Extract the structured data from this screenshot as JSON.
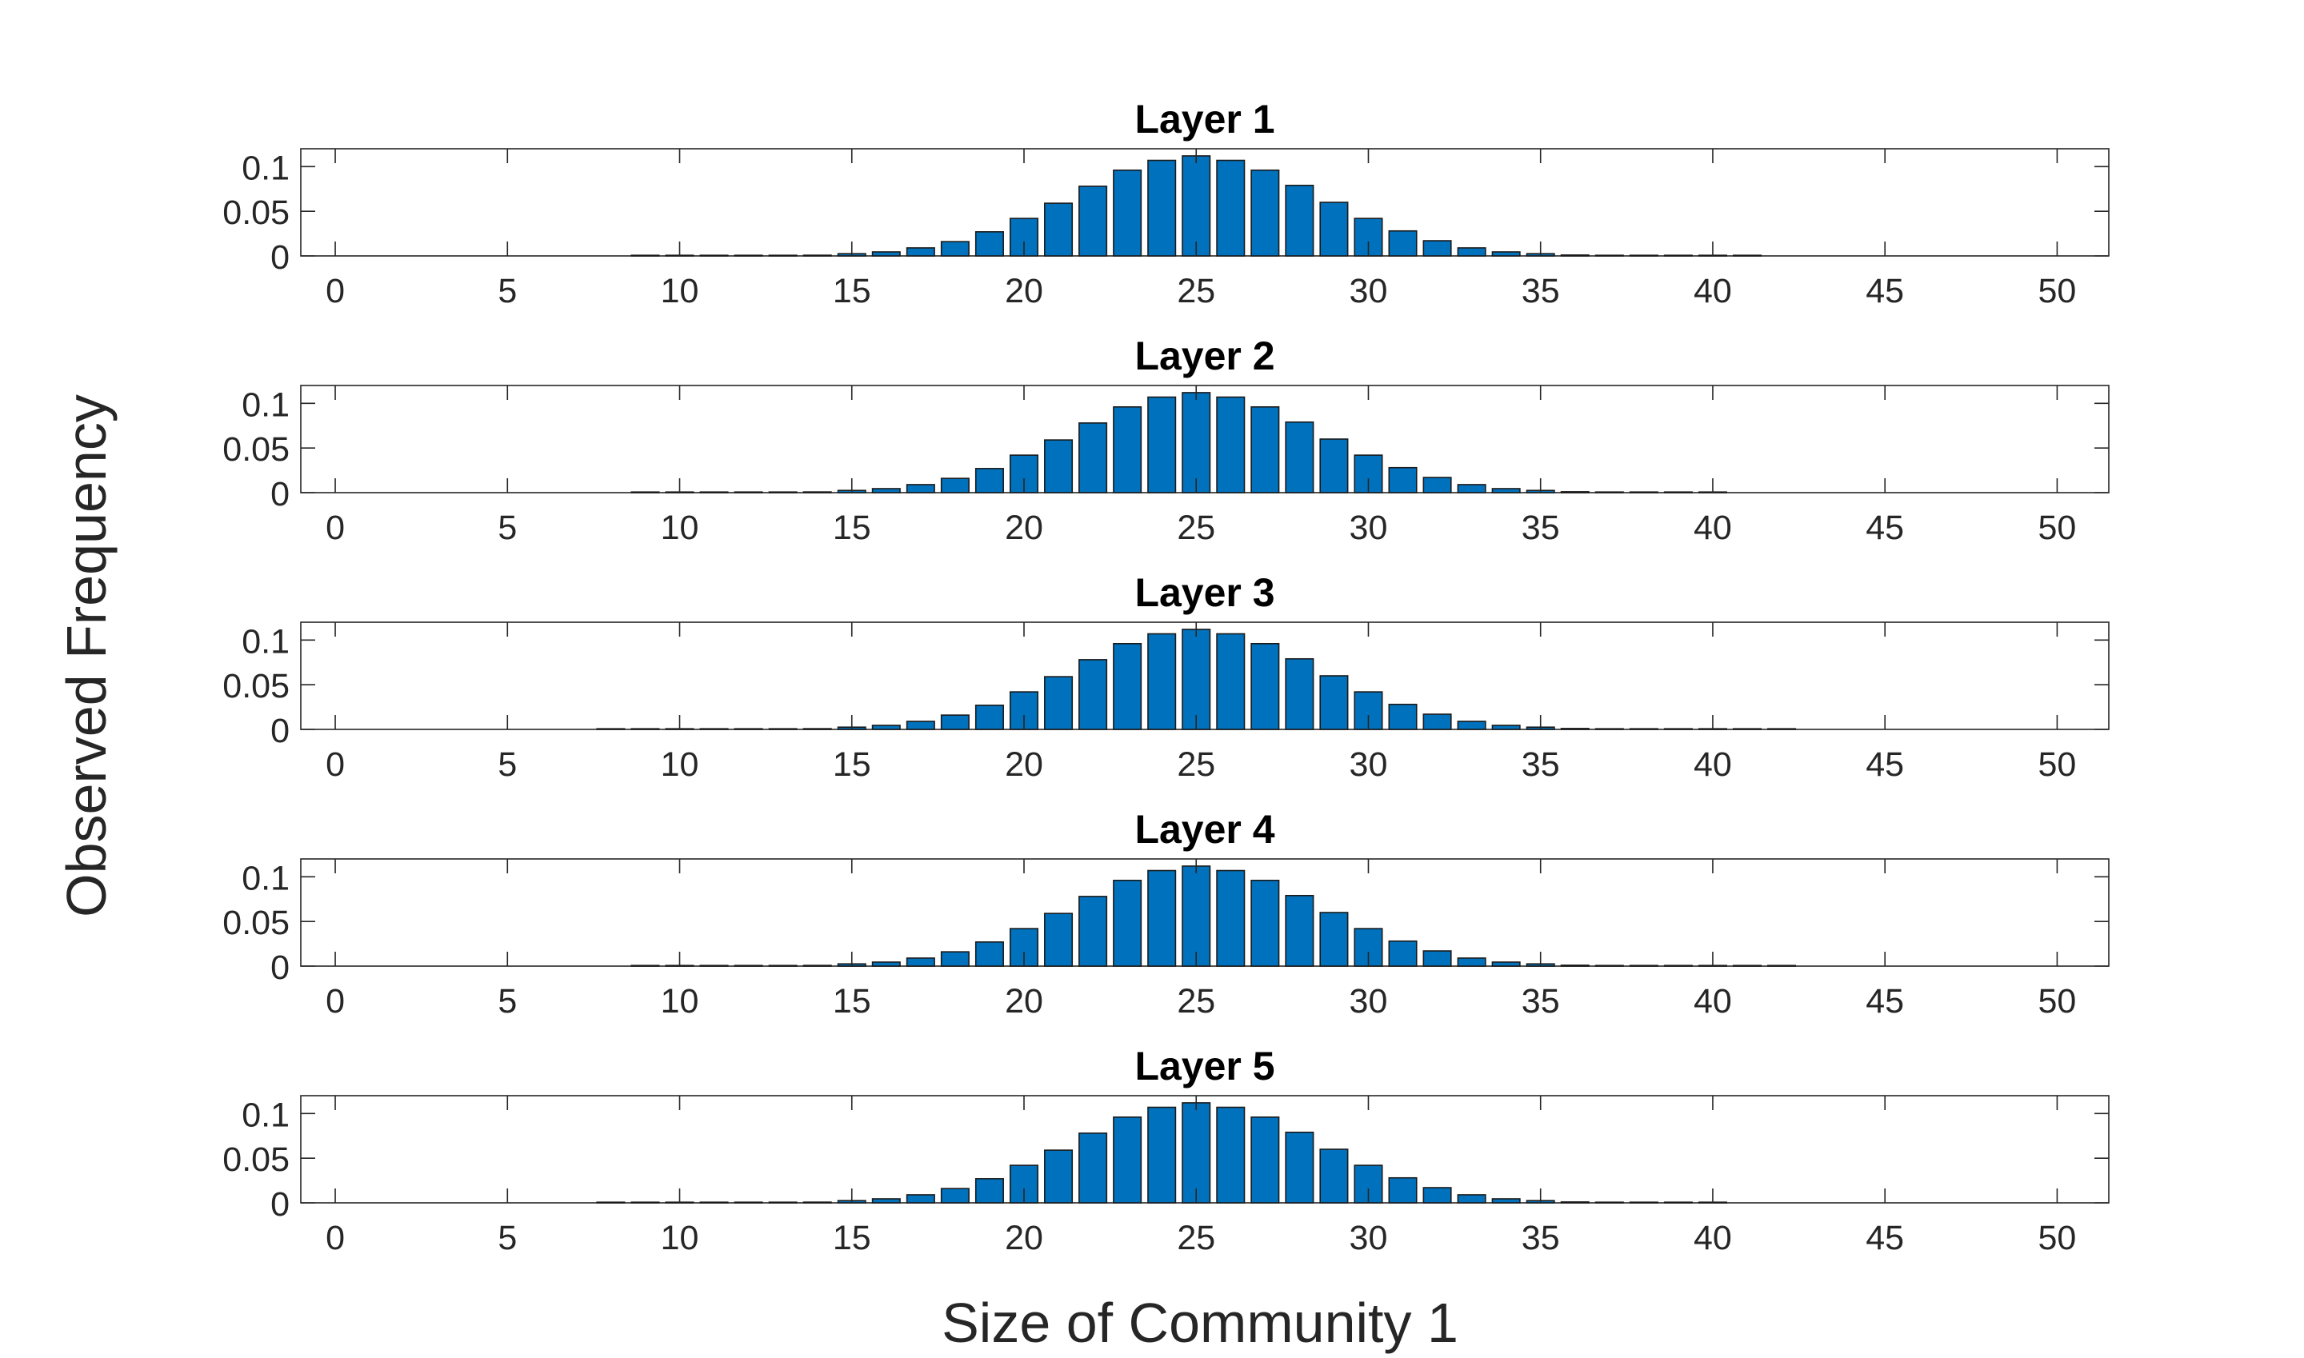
{
  "chart_data": {
    "type": "bar",
    "xlabel": "Size of Community 1",
    "ylabel": "Observed Frequency",
    "xlim": [
      -1,
      51.5
    ],
    "ylim": [
      0,
      0.12
    ],
    "xticks": [
      0,
      5,
      10,
      15,
      20,
      25,
      30,
      35,
      40,
      45,
      50
    ],
    "xtick_labels": [
      "0",
      "5",
      "10",
      "15",
      "20",
      "25",
      "30",
      "35",
      "40",
      "45",
      "50"
    ],
    "yticks": [
      0,
      0.05,
      0.1
    ],
    "ytick_labels": [
      "0",
      "0.05",
      "0.1"
    ],
    "bar_color": "#0072BD",
    "bar_edge_color": "#1a1a1a",
    "panels": [
      {
        "title": "Layer 1",
        "x": [
          9,
          10,
          11,
          12,
          13,
          14,
          15,
          16,
          17,
          18,
          19,
          20,
          21,
          22,
          23,
          24,
          25,
          26,
          27,
          28,
          29,
          30,
          31,
          32,
          33,
          34,
          35,
          36,
          37,
          38,
          39,
          40,
          41
        ],
        "values": [
          0.0001,
          0.0002,
          0.0003,
          0.0004,
          0.0005,
          0.0008,
          0.0025,
          0.0045,
          0.009,
          0.016,
          0.027,
          0.042,
          0.059,
          0.078,
          0.096,
          0.107,
          0.112,
          0.107,
          0.096,
          0.079,
          0.06,
          0.042,
          0.028,
          0.017,
          0.009,
          0.0045,
          0.0025,
          0.001,
          0.0007,
          0.0004,
          0.0003,
          0.0002,
          0.0001
        ]
      },
      {
        "title": "Layer 2",
        "x": [
          9,
          10,
          11,
          12,
          13,
          14,
          15,
          16,
          17,
          18,
          19,
          20,
          21,
          22,
          23,
          24,
          25,
          26,
          27,
          28,
          29,
          30,
          31,
          32,
          33,
          34,
          35,
          36,
          37,
          38,
          39,
          40
        ],
        "values": [
          0.0001,
          0.0002,
          0.0003,
          0.0004,
          0.0005,
          0.0008,
          0.0025,
          0.0045,
          0.009,
          0.016,
          0.027,
          0.042,
          0.059,
          0.078,
          0.096,
          0.107,
          0.112,
          0.107,
          0.096,
          0.079,
          0.06,
          0.042,
          0.028,
          0.017,
          0.009,
          0.0045,
          0.0025,
          0.001,
          0.0007,
          0.0004,
          0.0003,
          0.0002
        ]
      },
      {
        "title": "Layer 3",
        "x": [
          8,
          9,
          10,
          11,
          12,
          13,
          14,
          15,
          16,
          17,
          18,
          19,
          20,
          21,
          22,
          23,
          24,
          25,
          26,
          27,
          28,
          29,
          30,
          31,
          32,
          33,
          34,
          35,
          36,
          37,
          38,
          39,
          40,
          41,
          42
        ],
        "values": [
          0.0001,
          0.0001,
          0.0002,
          0.0003,
          0.0004,
          0.0005,
          0.0008,
          0.0025,
          0.0045,
          0.009,
          0.016,
          0.027,
          0.042,
          0.059,
          0.078,
          0.096,
          0.107,
          0.112,
          0.107,
          0.096,
          0.079,
          0.06,
          0.042,
          0.028,
          0.017,
          0.009,
          0.0045,
          0.0025,
          0.001,
          0.0007,
          0.0004,
          0.0003,
          0.0002,
          0.0001,
          0.0001
        ]
      },
      {
        "title": "Layer 4",
        "x": [
          9,
          10,
          11,
          12,
          13,
          14,
          15,
          16,
          17,
          18,
          19,
          20,
          21,
          22,
          23,
          24,
          25,
          26,
          27,
          28,
          29,
          30,
          31,
          32,
          33,
          34,
          35,
          36,
          37,
          38,
          39,
          40,
          41,
          42
        ],
        "values": [
          0.0001,
          0.0002,
          0.0003,
          0.0004,
          0.0005,
          0.0008,
          0.0025,
          0.0045,
          0.009,
          0.016,
          0.027,
          0.042,
          0.059,
          0.078,
          0.096,
          0.107,
          0.112,
          0.107,
          0.096,
          0.079,
          0.06,
          0.042,
          0.028,
          0.017,
          0.009,
          0.0045,
          0.0025,
          0.001,
          0.0007,
          0.0004,
          0.0003,
          0.0002,
          0.0001,
          0.0001
        ]
      },
      {
        "title": "Layer 5",
        "x": [
          8,
          9,
          10,
          11,
          12,
          13,
          14,
          15,
          16,
          17,
          18,
          19,
          20,
          21,
          22,
          23,
          24,
          25,
          26,
          27,
          28,
          29,
          30,
          31,
          32,
          33,
          34,
          35,
          36,
          37,
          38,
          39,
          40
        ],
        "values": [
          0.0001,
          0.0001,
          0.0002,
          0.0003,
          0.0004,
          0.0005,
          0.0008,
          0.0025,
          0.0045,
          0.009,
          0.016,
          0.027,
          0.042,
          0.059,
          0.078,
          0.096,
          0.107,
          0.112,
          0.107,
          0.096,
          0.079,
          0.06,
          0.042,
          0.028,
          0.017,
          0.009,
          0.0045,
          0.0025,
          0.001,
          0.0007,
          0.0004,
          0.0003,
          0.0002
        ]
      }
    ]
  }
}
